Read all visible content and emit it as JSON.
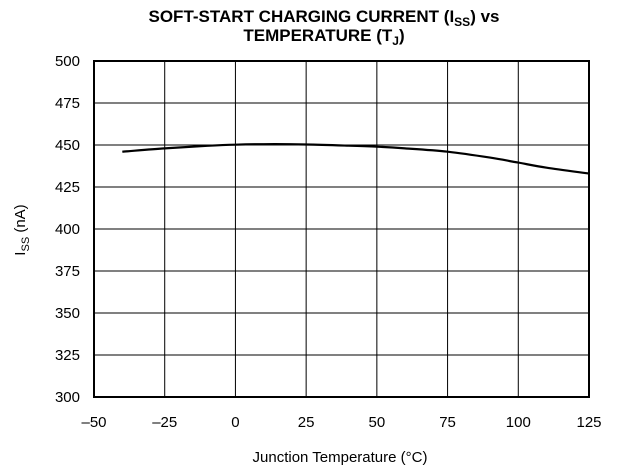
{
  "chart_data": {
    "type": "line",
    "title_line1_prefix": "SOFT-START CHARGING CURRENT (I",
    "title_line1_sub": "SS",
    "title_line1_suffix": ") vs",
    "title_line2_prefix": "TEMPERATURE (T",
    "title_line2_sub": "J",
    "title_line2_suffix": ")",
    "xlabel": "Junction Temperature (°C)",
    "ylabel_prefix": "I",
    "ylabel_sub": "SS",
    "ylabel_suffix": " (nA)",
    "xlim": [
      -50,
      125
    ],
    "ylim": [
      300,
      500
    ],
    "xticks": [
      -50,
      -25,
      0,
      25,
      50,
      75,
      100,
      125
    ],
    "xtick_labels": [
      "–50",
      "–25",
      "0",
      "25",
      "50",
      "75",
      "100",
      "125"
    ],
    "yticks": [
      300,
      325,
      350,
      375,
      400,
      425,
      450,
      475,
      500
    ],
    "ytick_labels": [
      "300",
      "325",
      "350",
      "375",
      "400",
      "425",
      "450",
      "475",
      "500"
    ],
    "grid": true,
    "series": [
      {
        "x": [
          -40,
          -25,
          -10,
          0,
          10,
          25,
          40,
          50,
          60,
          75,
          90,
          100,
          110,
          125
        ],
        "y": [
          446,
          448,
          449.5,
          450.2,
          450.5,
          450.3,
          449.6,
          449,
          448,
          446,
          442.5,
          439.5,
          436.5,
          433
        ]
      }
    ],
    "colors": {
      "line": "#000000",
      "grid": "#000000",
      "background": "#ffffff"
    }
  }
}
